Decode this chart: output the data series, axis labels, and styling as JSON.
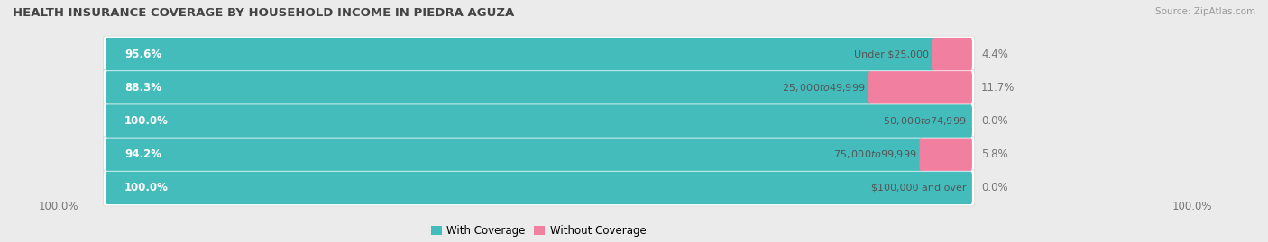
{
  "title": "HEALTH INSURANCE COVERAGE BY HOUSEHOLD INCOME IN PIEDRA AGUZA",
  "source": "Source: ZipAtlas.com",
  "categories": [
    "Under $25,000",
    "$25,000 to $49,999",
    "$50,000 to $74,999",
    "$75,000 to $99,999",
    "$100,000 and over"
  ],
  "with_coverage": [
    95.6,
    88.3,
    100.0,
    94.2,
    100.0
  ],
  "without_coverage": [
    4.4,
    11.7,
    0.0,
    5.8,
    0.0
  ],
  "color_with": "#45BCBC",
  "color_without": "#F07FA0",
  "bg_color": "#ebebeb",
  "bar_bg": "#ffffff",
  "title_fontsize": 9.5,
  "label_fontsize": 8.5,
  "category_fontsize": 8.0,
  "legend_fontsize": 8.5,
  "source_fontsize": 7.5,
  "bar_height": 0.68,
  "x_left_label": "100.0%",
  "x_right_label": "100.0%"
}
